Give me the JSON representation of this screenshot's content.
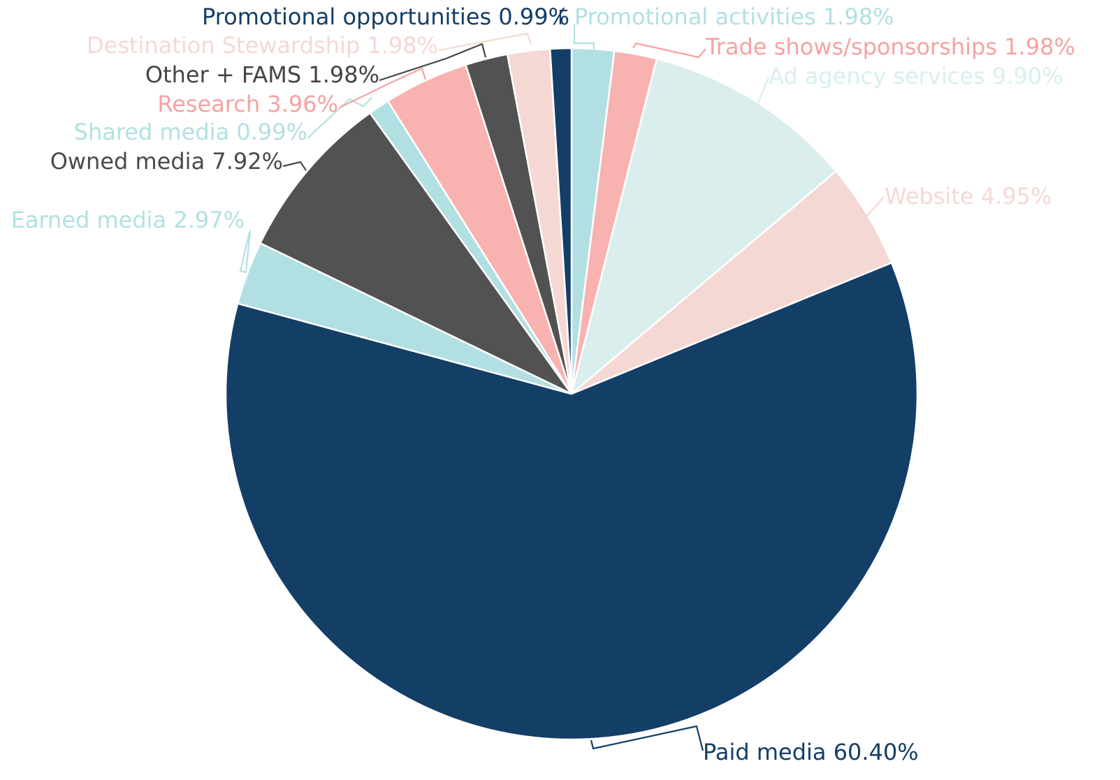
{
  "chart_data": {
    "type": "pie",
    "start_angle_deg": 0,
    "direction": "clockwise",
    "slices": [
      {
        "label": "Promotional activities",
        "value": 1.98,
        "display": "Promotional activities 1.98%",
        "color": "#b2e0e2"
      },
      {
        "label": "Trade shows/sponsorships",
        "value": 1.98,
        "display": "Trade shows/sponsorships 1.98%",
        "color": "#f8b2b0"
      },
      {
        "label": "Ad agency services",
        "value": 9.9,
        "display": "Ad agency services 9.90%",
        "color": "#daeeee"
      },
      {
        "label": "Website",
        "value": 4.95,
        "display": "Website 4.95%",
        "color": "#f5d8d4"
      },
      {
        "label": "Paid media",
        "value": 60.4,
        "display": "Paid media 60.40%",
        "color": "#133e66"
      },
      {
        "label": "Earned media",
        "value": 2.97,
        "display": "Earned media 2.97%",
        "color": "#b2e0e2"
      },
      {
        "label": "Owned media",
        "value": 7.92,
        "display": "Owned media 7.92%",
        "color": "#525252"
      },
      {
        "label": "Shared media",
        "value": 0.99,
        "display": "Shared media 0.99%",
        "color": "#b2e0e2"
      },
      {
        "label": "Research",
        "value": 3.96,
        "display": "Research 3.96%",
        "color": "#f8b2b0"
      },
      {
        "label": "Other + FAMS",
        "value": 1.98,
        "display": "Other + FAMS 1.98%",
        "color": "#525252"
      },
      {
        "label": "Destination Stewardship",
        "value": 1.98,
        "display": "Destination Stewardship 1.98%",
        "color": "#f5d8d4"
      },
      {
        "label": "Promotional opportunities",
        "value": 0.99,
        "display": "Promotional opportunities 0.99%",
        "color": "#133e66"
      }
    ]
  }
}
